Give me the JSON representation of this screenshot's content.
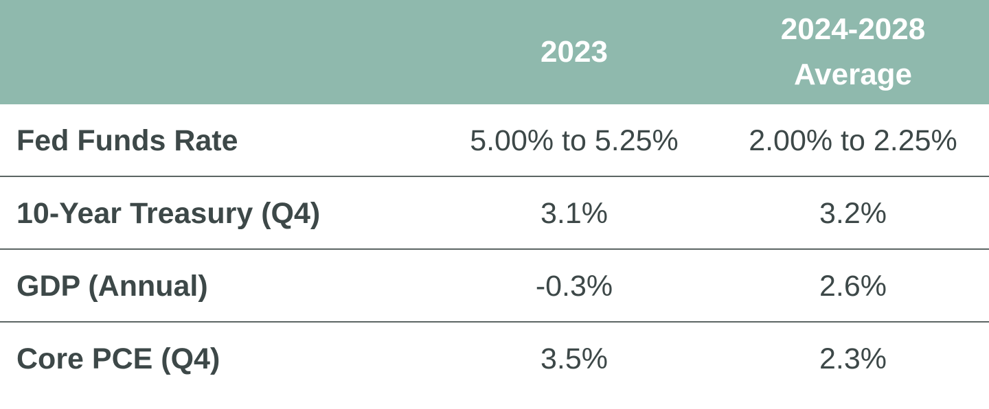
{
  "table": {
    "columns": [
      "2023",
      "2024-2028 Average"
    ],
    "rows": [
      {
        "label": "Fed Funds Rate",
        "values": [
          "5.00% to 5.25%",
          "2.00% to 2.25%"
        ]
      },
      {
        "label": "10-Year Treasury (Q4)",
        "values": [
          "3.1%",
          "3.2%"
        ]
      },
      {
        "label": "GDP (Annual)",
        "values": [
          "-0.3%",
          "2.6%"
        ]
      },
      {
        "label": "Core PCE (Q4)",
        "values": [
          "3.5%",
          "2.3%"
        ]
      }
    ]
  }
}
